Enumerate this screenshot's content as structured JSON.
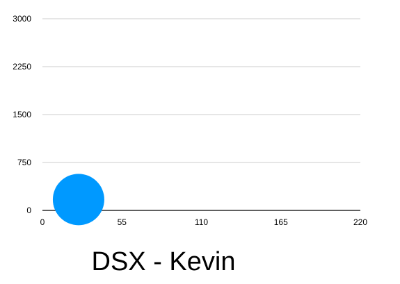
{
  "chart_data": {
    "type": "bubble",
    "title": "DSX - Kevin",
    "xlim": [
      0,
      220
    ],
    "ylim": [
      0,
      3000
    ],
    "x_ticks": [
      "0",
      "55",
      "110",
      "165",
      "220"
    ],
    "y_ticks": [
      "0",
      "750",
      "1500",
      "2250",
      "3000"
    ],
    "grid": "horizontal",
    "legend": "none",
    "series": [
      {
        "color": "#0099ff",
        "points": [
          {
            "x": 25,
            "y": 170,
            "size": 1
          }
        ]
      }
    ]
  }
}
